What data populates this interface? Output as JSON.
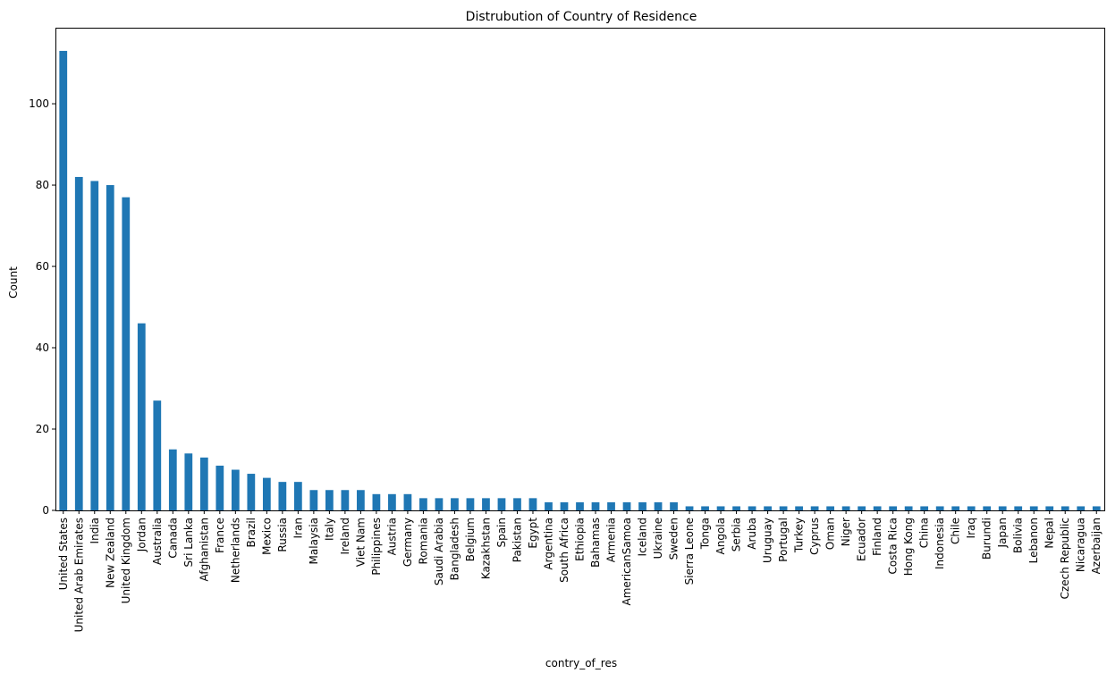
{
  "chart_data": {
    "type": "bar",
    "title": "Distrubution of Country of Residence",
    "xlabel": "contry_of_res",
    "ylabel": "Count",
    "ylim": [
      0,
      118.7
    ],
    "yticks": [
      0,
      20,
      40,
      60,
      80,
      100
    ],
    "grid": false,
    "legend": "none",
    "bar_color": "#1f77b4",
    "categories": [
      "United States",
      "United Arab Emirates",
      "India",
      "New Zealand",
      "United Kingdom",
      "Jordan",
      "Australia",
      "Canada",
      "Sri Lanka",
      "Afghanistan",
      "France",
      "Netherlands",
      "Brazil",
      "Mexico",
      "Russia",
      "Iran",
      "Malaysia",
      "Italy",
      "Ireland",
      "Viet Nam",
      "Philippines",
      "Austria",
      "Germany",
      "Romania",
      "Saudi Arabia",
      "Bangladesh",
      "Belgium",
      "Kazakhstan",
      "Spain",
      "Pakistan",
      "Egypt",
      "Argentina",
      "South Africa",
      "Ethiopia",
      "Bahamas",
      "Armenia",
      "AmericanSamoa",
      "Iceland",
      "Ukraine",
      "Sweden",
      "Sierra Leone",
      "Tonga",
      "Angola",
      "Serbia",
      "Aruba",
      "Uruguay",
      "Portugal",
      "Turkey",
      "Cyprus",
      "Oman",
      "Niger",
      "Ecuador",
      "Finland",
      "Costa Rica",
      "Hong Kong",
      "China",
      "Indonesia",
      "Chile",
      "Iraq",
      "Burundi",
      "Japan",
      "Bolivia",
      "Lebanon",
      "Nepal",
      "Czech Republic",
      "Nicaragua",
      "Azerbaijan"
    ],
    "values": [
      113,
      82,
      81,
      80,
      77,
      46,
      27,
      15,
      14,
      13,
      11,
      10,
      9,
      8,
      7,
      7,
      5,
      5,
      5,
      5,
      4,
      4,
      4,
      3,
      3,
      3,
      3,
      3,
      3,
      3,
      3,
      2,
      2,
      2,
      2,
      2,
      2,
      2,
      2,
      2,
      1,
      1,
      1,
      1,
      1,
      1,
      1,
      1,
      1,
      1,
      1,
      1,
      1,
      1,
      1,
      1,
      1,
      1,
      1,
      1,
      1,
      1,
      1,
      1,
      1,
      1,
      1
    ]
  }
}
